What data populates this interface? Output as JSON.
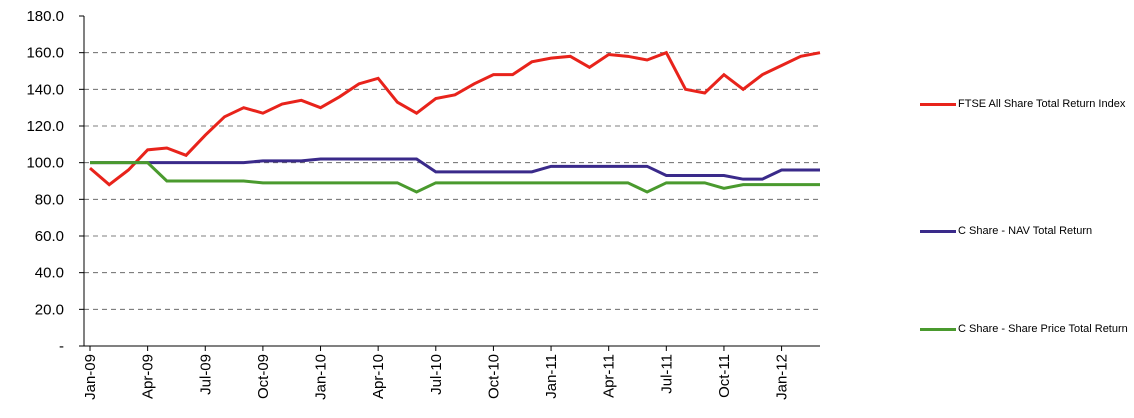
{
  "chart_data": {
    "type": "line",
    "categories": [
      "Jan-09",
      null,
      null,
      "Apr-09",
      null,
      null,
      "Jul-09",
      null,
      null,
      "Oct-09",
      null,
      null,
      "Jan-10",
      null,
      null,
      "Apr-10",
      null,
      null,
      "Jul-10",
      null,
      null,
      "Oct-10",
      null,
      null,
      "Jan-11",
      null,
      null,
      "Apr-11",
      null,
      null,
      "Jul-11",
      null,
      null,
      "Oct-11",
      null,
      null,
      "Jan-12",
      null,
      null
    ],
    "series": [
      {
        "name": "FTSE All Share Total Return Index",
        "color": "#e8231b",
        "values": [
          97,
          88,
          96,
          107,
          108,
          104,
          115,
          125,
          130,
          127,
          132,
          134,
          130,
          136,
          143,
          146,
          133,
          127,
          135,
          137,
          143,
          148,
          148,
          155,
          157,
          158,
          152,
          159,
          158,
          156,
          160,
          140,
          138,
          148,
          140,
          148,
          153,
          158,
          160
        ]
      },
      {
        "name": "C Share  - NAV Total Return",
        "color": "#3a2a8a",
        "values": [
          100,
          100,
          100,
          100,
          100,
          100,
          100,
          100,
          100,
          101,
          101,
          101,
          102,
          102,
          102,
          102,
          102,
          102,
          95,
          95,
          95,
          95,
          95,
          95,
          98,
          98,
          98,
          98,
          98,
          98,
          93,
          93,
          93,
          93,
          91,
          91,
          96,
          96,
          96
        ]
      },
      {
        "name": "C Share - Share Price Total Return",
        "color": "#4a9a2e",
        "values": [
          100,
          100,
          100,
          100,
          90,
          90,
          90,
          90,
          90,
          89,
          89,
          89,
          89,
          89,
          89,
          89,
          89,
          84,
          89,
          89,
          89,
          89,
          89,
          89,
          89,
          89,
          89,
          89,
          89,
          84,
          89,
          89,
          89,
          86,
          88,
          88,
          88,
          88,
          88
        ]
      }
    ],
    "ylim": [
      0,
      180
    ],
    "yticks": [
      {
        "value": 0,
        "label": "-"
      },
      {
        "value": 20,
        "label": "20.0"
      },
      {
        "value": 40,
        "label": "40.0"
      },
      {
        "value": 60,
        "label": "60.0"
      },
      {
        "value": 80,
        "label": "80.0"
      },
      {
        "value": 100,
        "label": "100.0"
      },
      {
        "value": 120,
        "label": "120.0"
      },
      {
        "value": 140,
        "label": "140.0"
      },
      {
        "value": 160,
        "label": "160.0"
      },
      {
        "value": 180,
        "label": "180.0"
      }
    ],
    "grid": true
  }
}
